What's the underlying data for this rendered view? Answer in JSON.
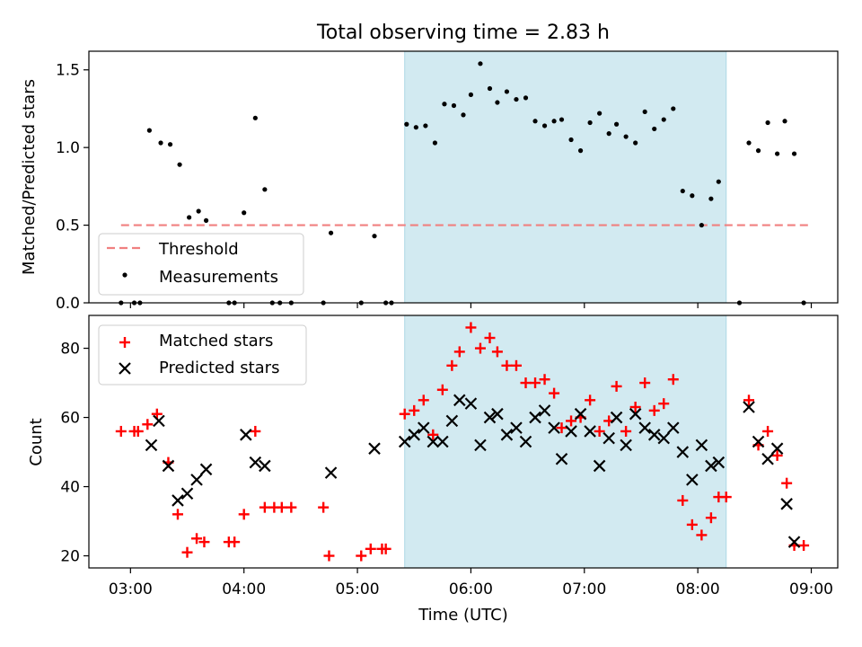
{
  "chart_data": [
    {
      "type": "scatter",
      "title": "Total observing time = 2.83 h",
      "ylabel": "Matched/Predicted stars",
      "xlabel": "",
      "x_unit": "hours UTC",
      "xlim": [
        "02:38",
        "09:14"
      ],
      "ylim": [
        0,
        1.62
      ],
      "yticks": [
        "0.0",
        "0.5",
        "1.0",
        "1.5"
      ],
      "highlight_span": {
        "start": "05:25",
        "end": "08:15",
        "color": "#add8e6"
      },
      "legend": {
        "position": "lower-left",
        "entries": [
          "Threshold",
          "Measurements"
        ]
      },
      "threshold": {
        "name": "Threshold",
        "value": 0.5,
        "x_range": [
          "02:55",
          "09:00"
        ],
        "color": "#f08080",
        "style": "dashed"
      },
      "series": [
        {
          "name": "Measurements",
          "color": "#000000",
          "marker": "dot",
          "points": [
            [
              "02:55",
              0.0
            ],
            [
              "03:02",
              0.0
            ],
            [
              "03:05",
              0.0
            ],
            [
              "03:10",
              1.11
            ],
            [
              "03:16",
              1.03
            ],
            [
              "03:21",
              1.02
            ],
            [
              "03:26",
              0.89
            ],
            [
              "03:31",
              0.55
            ],
            [
              "03:36",
              0.59
            ],
            [
              "03:40",
              0.53
            ],
            [
              "03:52",
              0.0
            ],
            [
              "03:55",
              0.0
            ],
            [
              "04:00",
              0.58
            ],
            [
              "04:06",
              1.19
            ],
            [
              "04:11",
              0.73
            ],
            [
              "04:15",
              0.0
            ],
            [
              "04:19",
              0.0
            ],
            [
              "04:25",
              0.0
            ],
            [
              "04:42",
              0.0
            ],
            [
              "04:46",
              0.45
            ],
            [
              "05:02",
              0.0
            ],
            [
              "05:09",
              0.43
            ],
            [
              "05:15",
              0.0
            ],
            [
              "05:18",
              0.0
            ],
            [
              "05:26",
              1.15
            ],
            [
              "05:31",
              1.13
            ],
            [
              "05:36",
              1.14
            ],
            [
              "05:41",
              1.03
            ],
            [
              "05:46",
              1.28
            ],
            [
              "05:51",
              1.27
            ],
            [
              "05:56",
              1.21
            ],
            [
              "06:00",
              1.34
            ],
            [
              "06:05",
              1.54
            ],
            [
              "06:10",
              1.38
            ],
            [
              "06:14",
              1.29
            ],
            [
              "06:19",
              1.36
            ],
            [
              "06:24",
              1.31
            ],
            [
              "06:29",
              1.32
            ],
            [
              "06:34",
              1.17
            ],
            [
              "06:39",
              1.14
            ],
            [
              "06:44",
              1.17
            ],
            [
              "06:48",
              1.18
            ],
            [
              "06:53",
              1.05
            ],
            [
              "06:58",
              0.98
            ],
            [
              "07:03",
              1.16
            ],
            [
              "07:08",
              1.22
            ],
            [
              "07:13",
              1.09
            ],
            [
              "07:17",
              1.15
            ],
            [
              "07:22",
              1.07
            ],
            [
              "07:27",
              1.03
            ],
            [
              "07:32",
              1.23
            ],
            [
              "07:37",
              1.12
            ],
            [
              "07:42",
              1.18
            ],
            [
              "07:47",
              1.25
            ],
            [
              "07:52",
              0.72
            ],
            [
              "07:57",
              0.69
            ],
            [
              "08:02",
              0.5
            ],
            [
              "08:07",
              0.67
            ],
            [
              "08:11",
              0.78
            ],
            [
              "08:22",
              0.0
            ],
            [
              "08:27",
              1.03
            ],
            [
              "08:32",
              0.98
            ],
            [
              "08:37",
              1.16
            ],
            [
              "08:42",
              0.96
            ],
            [
              "08:46",
              1.17
            ],
            [
              "08:51",
              0.96
            ],
            [
              "08:56",
              0.0
            ]
          ]
        }
      ]
    },
    {
      "type": "scatter",
      "title": "",
      "ylabel": "Count",
      "xlabel": "Time (UTC)",
      "x_unit": "hours UTC",
      "xlim": [
        "02:38",
        "09:14"
      ],
      "ylim": [
        16.5,
        89.5
      ],
      "yticks": [
        "20",
        "40",
        "60",
        "80"
      ],
      "xticks": [
        "03:00",
        "04:00",
        "05:00",
        "06:00",
        "07:00",
        "08:00",
        "09:00"
      ],
      "highlight_span": {
        "start": "05:25",
        "end": "08:15",
        "color": "#add8e6"
      },
      "legend": {
        "position": "upper-left",
        "entries": [
          "Matched stars",
          "Predicted stars"
        ]
      },
      "series": [
        {
          "name": "Matched stars",
          "color": "#ff0000",
          "marker": "plus",
          "points": [
            [
              "02:55",
              56
            ],
            [
              "03:02",
              56
            ],
            [
              "03:04",
              56
            ],
            [
              "03:09",
              58
            ],
            [
              "03:14",
              61
            ],
            [
              "03:20",
              47
            ],
            [
              "03:25",
              32
            ],
            [
              "03:30",
              21
            ],
            [
              "03:35",
              25
            ],
            [
              "03:39",
              24
            ],
            [
              "03:52",
              24
            ],
            [
              "03:55",
              24
            ],
            [
              "04:00",
              32
            ],
            [
              "04:06",
              56
            ],
            [
              "04:11",
              34
            ],
            [
              "04:16",
              34
            ],
            [
              "04:20",
              34
            ],
            [
              "04:25",
              34
            ],
            [
              "04:42",
              34
            ],
            [
              "04:45",
              20
            ],
            [
              "05:02",
              20
            ],
            [
              "05:07",
              22
            ],
            [
              "05:13",
              22
            ],
            [
              "05:15",
              22
            ],
            [
              "05:25",
              61
            ],
            [
              "05:30",
              62
            ],
            [
              "05:35",
              65
            ],
            [
              "05:40",
              55
            ],
            [
              "05:45",
              68
            ],
            [
              "05:50",
              75
            ],
            [
              "05:54",
              79
            ],
            [
              "06:00",
              86
            ],
            [
              "06:05",
              80
            ],
            [
              "06:10",
              83
            ],
            [
              "06:14",
              79
            ],
            [
              "06:19",
              75
            ],
            [
              "06:24",
              75
            ],
            [
              "06:29",
              70
            ],
            [
              "06:34",
              70
            ],
            [
              "06:39",
              71
            ],
            [
              "06:44",
              67
            ],
            [
              "06:48",
              57
            ],
            [
              "06:53",
              59
            ],
            [
              "06:58",
              60
            ],
            [
              "07:03",
              65
            ],
            [
              "07:08",
              56
            ],
            [
              "07:13",
              59
            ],
            [
              "07:17",
              69
            ],
            [
              "07:22",
              56
            ],
            [
              "07:27",
              63
            ],
            [
              "07:32",
              70
            ],
            [
              "07:37",
              62
            ],
            [
              "07:42",
              64
            ],
            [
              "07:47",
              71
            ],
            [
              "07:52",
              36
            ],
            [
              "07:57",
              29
            ],
            [
              "08:02",
              26
            ],
            [
              "08:07",
              31
            ],
            [
              "08:11",
              37
            ],
            [
              "08:15",
              37
            ],
            [
              "08:27",
              65
            ],
            [
              "08:32",
              52
            ],
            [
              "08:37",
              56
            ],
            [
              "08:42",
              49
            ],
            [
              "08:47",
              41
            ],
            [
              "08:51",
              23
            ],
            [
              "08:56",
              23
            ]
          ]
        },
        {
          "name": "Predicted stars",
          "color": "#000000",
          "marker": "x",
          "points": [
            [
              "03:11",
              52
            ],
            [
              "03:15",
              59
            ],
            [
              "03:20",
              46
            ],
            [
              "03:25",
              36
            ],
            [
              "03:30",
              38
            ],
            [
              "03:35",
              42
            ],
            [
              "03:40",
              45
            ],
            [
              "04:01",
              55
            ],
            [
              "04:06",
              47
            ],
            [
              "04:11",
              46
            ],
            [
              "04:46",
              44
            ],
            [
              "05:09",
              51
            ],
            [
              "05:25",
              53
            ],
            [
              "05:30",
              55
            ],
            [
              "05:35",
              57
            ],
            [
              "05:40",
              53
            ],
            [
              "05:45",
              53
            ],
            [
              "05:50",
              59
            ],
            [
              "05:54",
              65
            ],
            [
              "06:00",
              64
            ],
            [
              "06:05",
              52
            ],
            [
              "06:10",
              60
            ],
            [
              "06:14",
              61
            ],
            [
              "06:19",
              55
            ],
            [
              "06:24",
              57
            ],
            [
              "06:29",
              53
            ],
            [
              "06:34",
              60
            ],
            [
              "06:39",
              62
            ],
            [
              "06:44",
              57
            ],
            [
              "06:48",
              48
            ],
            [
              "06:53",
              56
            ],
            [
              "06:58",
              61
            ],
            [
              "07:03",
              56
            ],
            [
              "07:08",
              46
            ],
            [
              "07:13",
              54
            ],
            [
              "07:17",
              60
            ],
            [
              "07:22",
              52
            ],
            [
              "07:27",
              61
            ],
            [
              "07:32",
              57
            ],
            [
              "07:37",
              55
            ],
            [
              "07:42",
              54
            ],
            [
              "07:47",
              57
            ],
            [
              "07:52",
              50
            ],
            [
              "07:57",
              42
            ],
            [
              "08:02",
              52
            ],
            [
              "08:07",
              46
            ],
            [
              "08:11",
              47
            ],
            [
              "08:27",
              63
            ],
            [
              "08:32",
              53
            ],
            [
              "08:37",
              48
            ],
            [
              "08:42",
              51
            ],
            [
              "08:47",
              35
            ],
            [
              "08:51",
              24
            ]
          ]
        }
      ]
    }
  ]
}
